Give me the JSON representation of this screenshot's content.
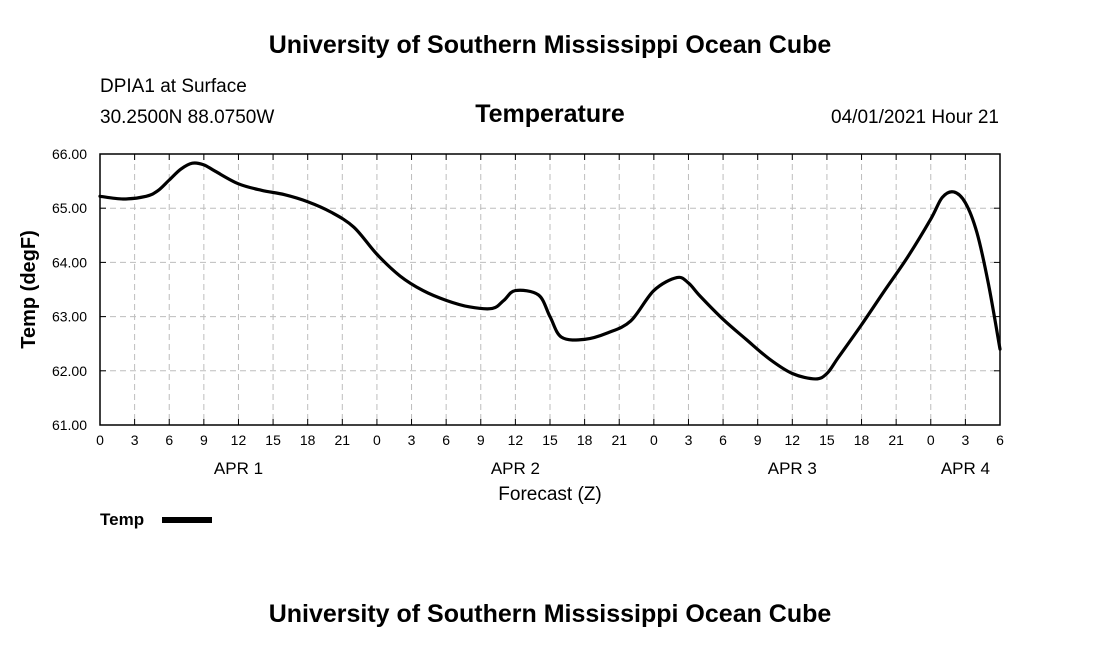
{
  "header": {
    "title": "University of Southern Mississippi Ocean Cube",
    "station": "DPIA1 at Surface",
    "coords": "30.2500N  88.0750W",
    "datetime": "04/01/2021 Hour 21"
  },
  "footer": {
    "title": "University of Southern Mississippi Ocean Cube"
  },
  "chart_data": {
    "type": "line",
    "title": "Temperature",
    "xlabel": "Forecast (Z)",
    "ylabel": "Temp (degF)",
    "ylim": [
      61.0,
      66.0
    ],
    "xlim": [
      0,
      78
    ],
    "y_ticks": [
      "61.00",
      "62.00",
      "63.00",
      "64.00",
      "65.00",
      "66.00"
    ],
    "x_tick_labels": [
      "0",
      "3",
      "6",
      "9",
      "12",
      "15",
      "18",
      "21",
      "0",
      "3",
      "6",
      "9",
      "12",
      "15",
      "18",
      "21",
      "0",
      "3",
      "6",
      "9",
      "12",
      "15",
      "18",
      "21",
      "0",
      "3",
      "6"
    ],
    "day_labels": [
      {
        "label": "APR 1",
        "hour": 12
      },
      {
        "label": "APR 2",
        "hour": 36
      },
      {
        "label": "APR 3",
        "hour": 60
      },
      {
        "label": "APR 4",
        "hour": 75
      }
    ],
    "grid": true,
    "legend": "bottom-left",
    "series": [
      {
        "name": "Temp",
        "x": [
          0,
          2,
          4,
          5,
          6,
          7,
          8,
          9,
          10,
          12,
          14,
          16,
          18,
          20,
          22,
          24,
          26,
          28,
          30,
          32,
          34,
          35,
          36,
          38,
          39,
          40,
          42,
          44,
          46,
          48,
          50,
          51,
          52,
          54,
          56,
          58,
          60,
          62,
          63,
          64,
          66,
          68,
          70,
          72,
          73,
          74,
          75,
          76,
          77,
          78
        ],
        "values": [
          65.22,
          65.17,
          65.22,
          65.32,
          65.52,
          65.72,
          65.83,
          65.8,
          65.68,
          65.45,
          65.33,
          65.25,
          65.12,
          64.93,
          64.65,
          64.15,
          63.75,
          63.48,
          63.3,
          63.18,
          63.15,
          63.3,
          63.48,
          63.4,
          63.0,
          62.62,
          62.58,
          62.7,
          62.92,
          63.48,
          63.72,
          63.62,
          63.38,
          62.95,
          62.58,
          62.22,
          61.95,
          61.85,
          61.95,
          62.25,
          62.85,
          63.48,
          64.1,
          64.8,
          65.2,
          65.3,
          65.1,
          64.55,
          63.6,
          62.4
        ]
      }
    ]
  }
}
